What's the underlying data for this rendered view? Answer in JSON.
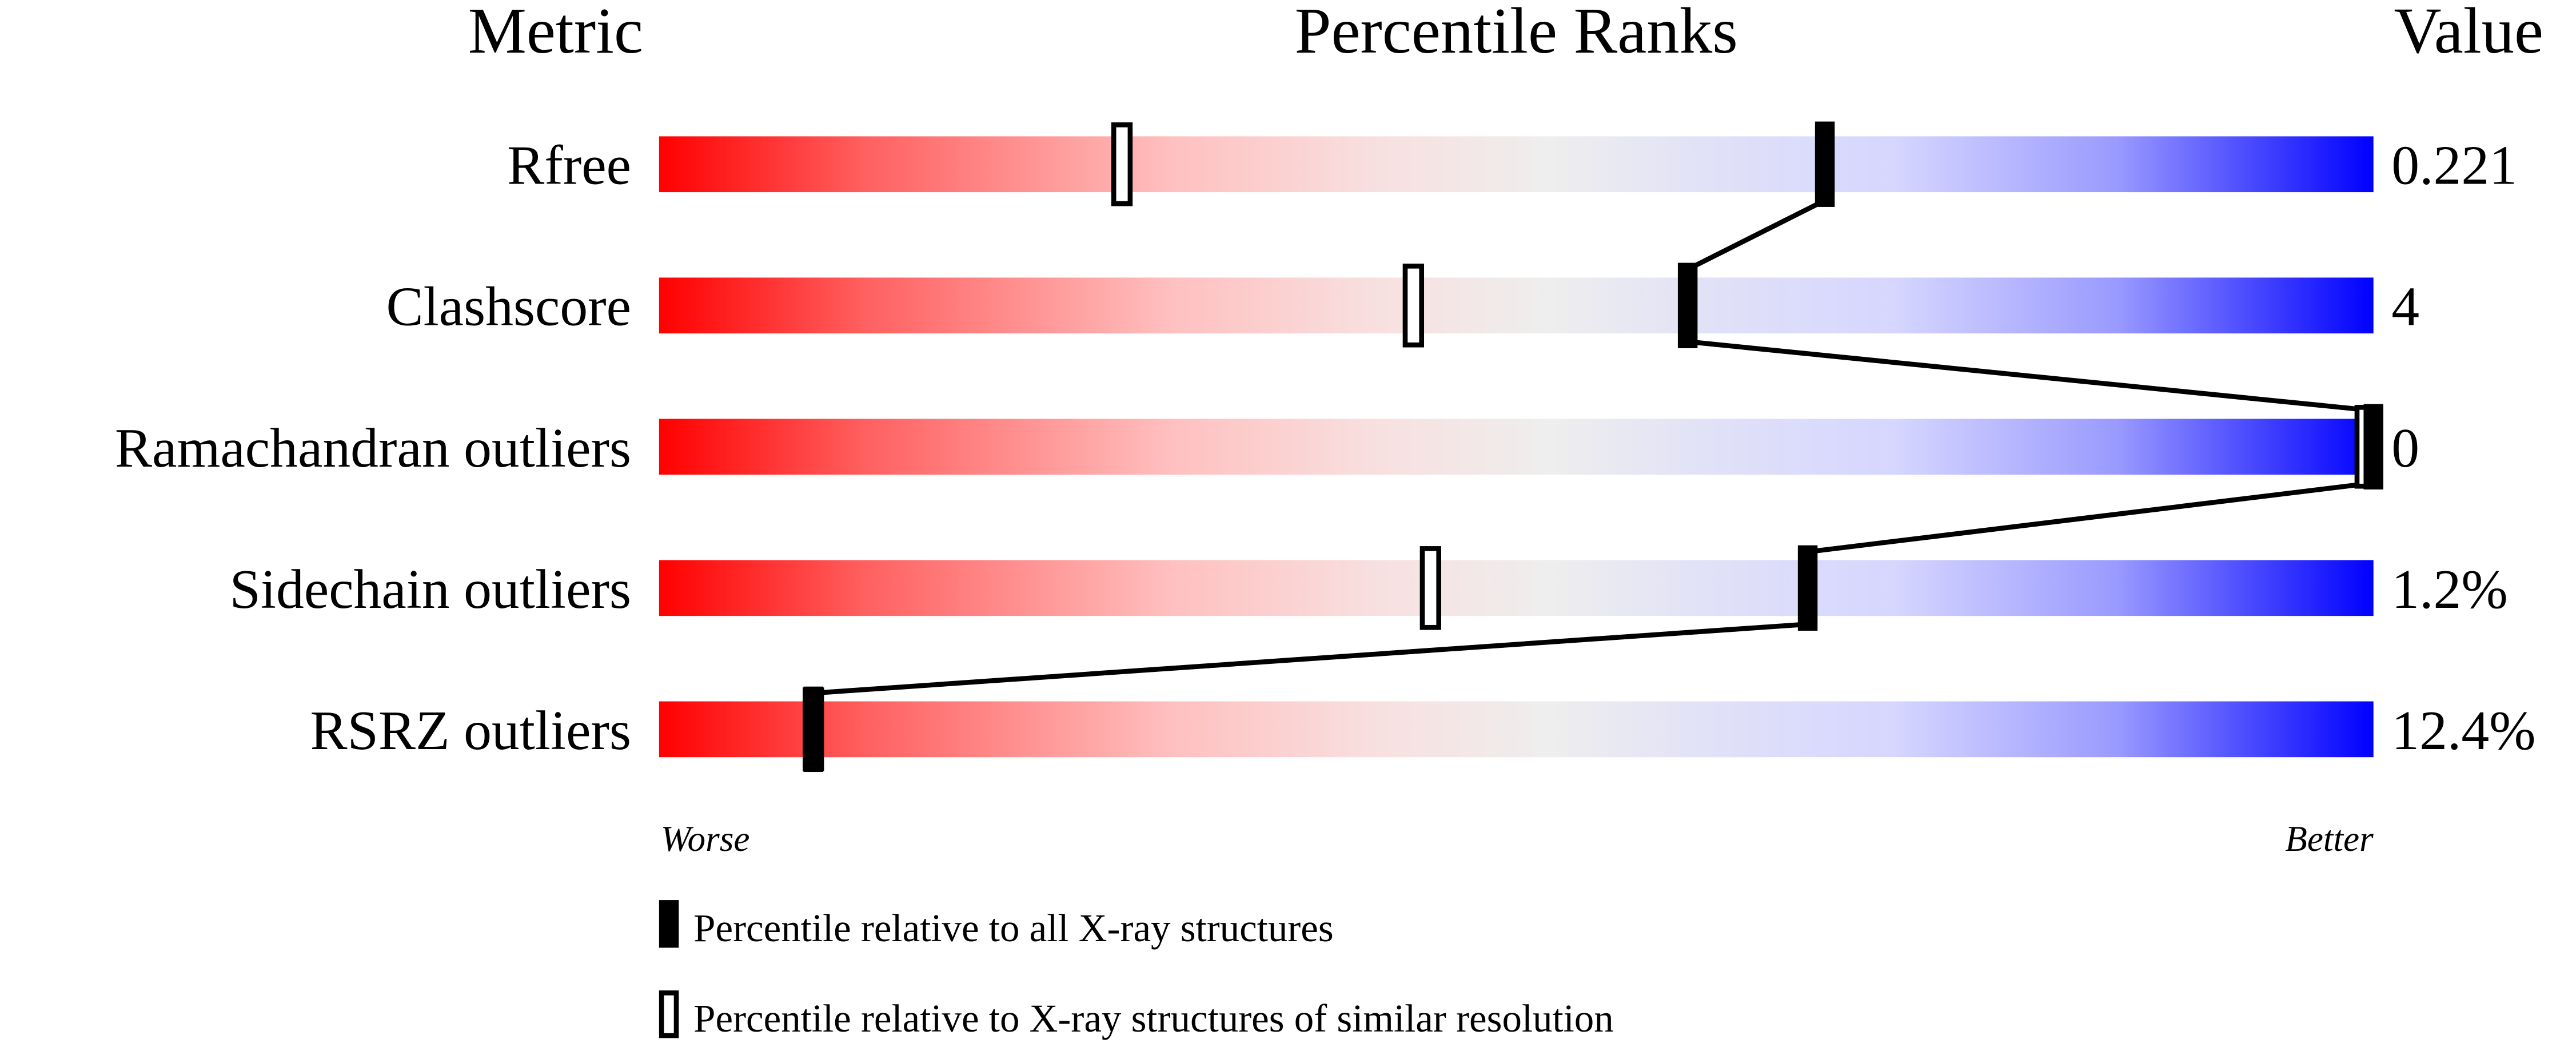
{
  "chart_data": {
    "type": "percentile-slider",
    "headers": {
      "metric": "Metric",
      "ranks": "Percentile Ranks",
      "value": "Value"
    },
    "axis": {
      "min_label": "Worse",
      "max_label": "Better",
      "range": [
        0,
        100
      ]
    },
    "colors": {
      "worse": "#ff0000",
      "middle": "#eeeeee",
      "better": "#0000ff",
      "marker": "#000000"
    },
    "metrics": [
      {
        "name": "Rfree",
        "value": "0.221",
        "percentile_all": 68,
        "percentile_similar": 27
      },
      {
        "name": "Clashscore",
        "value": "4",
        "percentile_all": 60,
        "percentile_similar": 44
      },
      {
        "name": "Ramachandran outliers",
        "value": "0",
        "percentile_all": 100,
        "percentile_similar": 100
      },
      {
        "name": "Sidechain outliers",
        "value": "1.2%",
        "percentile_all": 67,
        "percentile_similar": 45
      },
      {
        "name": "RSRZ outliers",
        "value": "12.4%",
        "percentile_all": 9,
        "percentile_similar": 9
      }
    ],
    "legend": [
      {
        "marker": "filled",
        "label": "Percentile relative to all X-ray structures"
      },
      {
        "marker": "hollow",
        "label": "Percentile relative to X-ray structures of similar resolution"
      }
    ]
  }
}
